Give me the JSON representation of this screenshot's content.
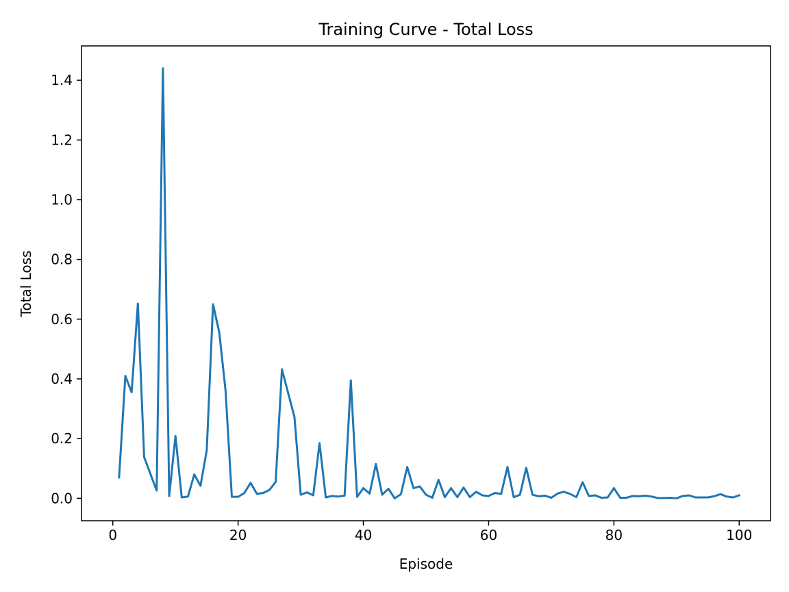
{
  "chart_data": {
    "type": "line",
    "title": "Training Curve - Total Loss",
    "xlabel": "Episode",
    "ylabel": "Total Loss",
    "xlim": [
      -5,
      105
    ],
    "ylim": [
      -0.075,
      1.515
    ],
    "xticks": [
      0,
      20,
      40,
      60,
      80,
      100
    ],
    "xtick_labels": [
      "0",
      "20",
      "40",
      "60",
      "80",
      "100"
    ],
    "yticks": [
      0.0,
      0.2,
      0.4,
      0.6,
      0.8,
      1.0,
      1.2,
      1.4
    ],
    "ytick_labels": [
      "0.0",
      "0.2",
      "0.4",
      "0.6",
      "0.8",
      "1.0",
      "1.2",
      "1.4"
    ],
    "grid": false,
    "legend": "none",
    "series": [
      {
        "color": "#1f77b4",
        "x": [
          1,
          2,
          3,
          4,
          5,
          6,
          7,
          8,
          9,
          10,
          11,
          12,
          13,
          14,
          15,
          16,
          17,
          18,
          19,
          20,
          21,
          22,
          23,
          24,
          25,
          26,
          27,
          28,
          29,
          30,
          31,
          32,
          33,
          34,
          35,
          36,
          37,
          38,
          39,
          40,
          41,
          42,
          43,
          44,
          45,
          46,
          47,
          48,
          49,
          50,
          51,
          52,
          53,
          54,
          55,
          56,
          57,
          58,
          59,
          60,
          61,
          62,
          63,
          64,
          65,
          66,
          67,
          68,
          69,
          70,
          71,
          72,
          73,
          74,
          75,
          76,
          77,
          78,
          79,
          80,
          81,
          82,
          83,
          84,
          85,
          86,
          87,
          88,
          89,
          90,
          91,
          92,
          93,
          94,
          95,
          96,
          97,
          98,
          99,
          100
        ],
        "y": [
          0.07,
          0.41,
          0.355,
          0.652,
          0.138,
          0.082,
          0.026,
          1.44,
          0.008,
          0.209,
          0.003,
          0.006,
          0.08,
          0.042,
          0.162,
          0.65,
          0.555,
          0.36,
          0.005,
          0.005,
          0.018,
          0.052,
          0.015,
          0.018,
          0.028,
          0.055,
          0.432,
          0.352,
          0.272,
          0.012,
          0.02,
          0.01,
          0.185,
          0.003,
          0.008,
          0.006,
          0.009,
          0.395,
          0.005,
          0.034,
          0.016,
          0.115,
          0.012,
          0.032,
          0.0,
          0.014,
          0.105,
          0.034,
          0.04,
          0.012,
          0.002,
          0.062,
          0.004,
          0.034,
          0.004,
          0.036,
          0.004,
          0.022,
          0.01,
          0.008,
          0.018,
          0.015,
          0.105,
          0.004,
          0.012,
          0.102,
          0.012,
          0.007,
          0.009,
          0.002,
          0.016,
          0.022,
          0.015,
          0.004,
          0.054,
          0.008,
          0.01,
          0.002,
          0.003,
          0.034,
          0.002,
          0.002,
          0.008,
          0.007,
          0.009,
          0.006,
          0.001,
          0.001,
          0.002,
          0.0,
          0.008,
          0.01,
          0.003,
          0.003,
          0.003,
          0.007,
          0.014,
          0.006,
          0.003,
          0.01
        ]
      }
    ]
  }
}
